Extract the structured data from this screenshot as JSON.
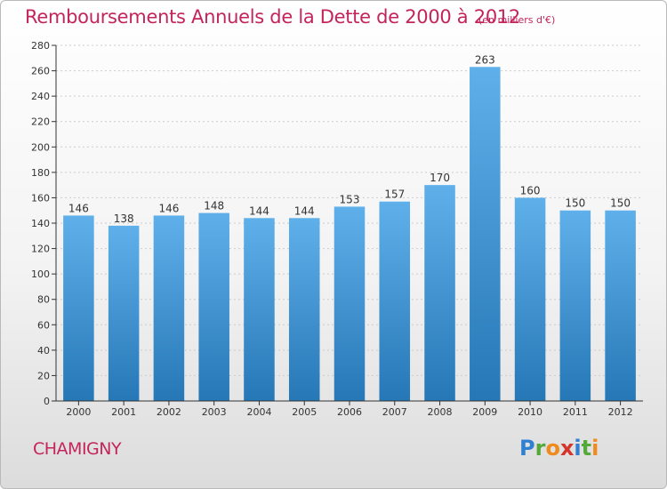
{
  "title": "Remboursements Annuels de la Dette de 2000 à 2012",
  "unit_note": "(en milliers d'€)",
  "commune": "CHAMIGNY",
  "logo": {
    "letters": [
      {
        "ch": "P",
        "color": "#2f7fd2"
      },
      {
        "ch": "r",
        "color": "#55a83a"
      },
      {
        "ch": "o",
        "color": "#f08a1c"
      },
      {
        "ch": "x",
        "color": "#d5342b"
      },
      {
        "ch": "i",
        "color": "#2f7fd2"
      },
      {
        "ch": "t",
        "color": "#55a83a"
      },
      {
        "ch": "i",
        "color": "#f08a1c"
      }
    ]
  },
  "colors": {
    "accent": "#c4245c",
    "bar_top": "#5fb0ea",
    "bar_bottom": "#2677b6",
    "axis": "#333333",
    "grid": "#cccccc"
  },
  "chart_data": {
    "type": "bar",
    "categories": [
      "2000",
      "2001",
      "2002",
      "2003",
      "2004",
      "2005",
      "2006",
      "2007",
      "2008",
      "2009",
      "2010",
      "2011",
      "2012"
    ],
    "values": [
      146,
      138,
      146,
      148,
      144,
      144,
      153,
      157,
      170,
      263,
      160,
      150,
      150
    ],
    "ylim": [
      0,
      280
    ],
    "yticks": [
      0,
      20,
      40,
      60,
      80,
      100,
      120,
      140,
      160,
      180,
      200,
      220,
      240,
      260,
      280
    ],
    "grid": true,
    "show_value_labels": true
  }
}
